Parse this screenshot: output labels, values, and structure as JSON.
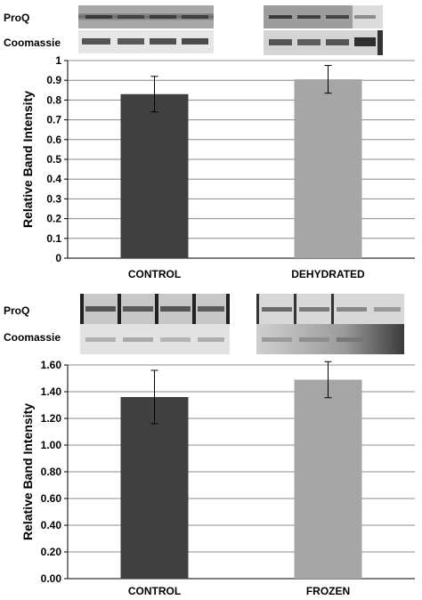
{
  "panels": [
    {
      "blot_labels": {
        "proq": "ProQ",
        "coomassie": "Coomassie"
      }
    },
    {
      "blot_labels": {
        "proq": "ProQ",
        "coomassie": "Coomassie"
      }
    }
  ],
  "chart_data": [
    {
      "type": "bar",
      "categories": [
        "CONTROL",
        "DEHYDRATED"
      ],
      "values": [
        0.83,
        0.905
      ],
      "error": [
        0.09,
        0.07
      ],
      "ylabel": "Relative Band Intensity",
      "xlabel": "",
      "ylim": [
        0,
        1
      ],
      "yticks": [
        "0",
        "0.1",
        "0.2",
        "0.3",
        "0.4",
        "0.5",
        "0.6",
        "0.7",
        "0.8",
        "0.9",
        "1"
      ],
      "colors": [
        "#404040",
        "#a6a6a6"
      ],
      "grid": true
    },
    {
      "type": "bar",
      "categories": [
        "CONTROL",
        "FROZEN"
      ],
      "values": [
        1.36,
        1.49
      ],
      "error": [
        0.2,
        0.135
      ],
      "ylabel": "Relative Band Intensity",
      "xlabel": "",
      "ylim": [
        0,
        1.6
      ],
      "yticks": [
        "0.00",
        "0.20",
        "0.40",
        "0.60",
        "0.80",
        "1.00",
        "1.20",
        "1.40",
        "1.60"
      ],
      "colors": [
        "#404040",
        "#a6a6a6"
      ],
      "grid": true
    }
  ]
}
